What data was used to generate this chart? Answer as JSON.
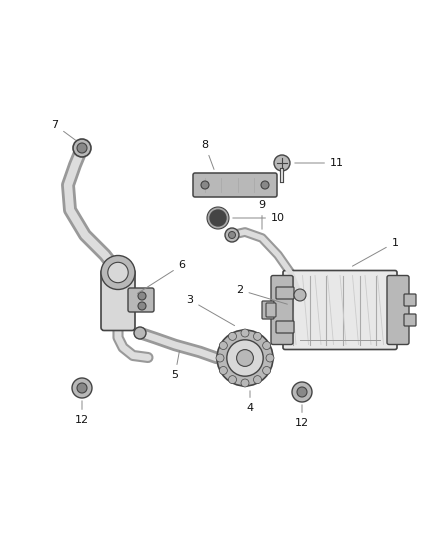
{
  "bg_color": "#ffffff",
  "line_color": "#444444",
  "label_color": "#111111",
  "gray_fill": "#d8d8d8",
  "gray_mid": "#b8b8b8",
  "gray_dark": "#888888",
  "gray_light": "#e8e8e8"
}
